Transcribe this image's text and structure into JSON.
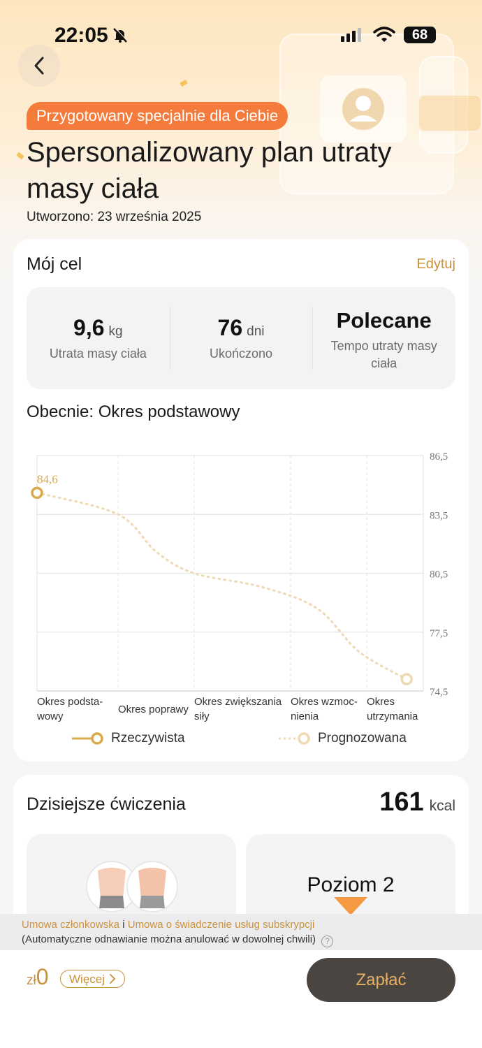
{
  "status_bar": {
    "time": "22:05",
    "battery": "68"
  },
  "hero": {
    "badge": "Przygotowany specjalnie dla Ciebie",
    "title": "Spersonalizowany plan utraty masy ciała",
    "created": "Utworzono: 23 września 2025"
  },
  "goal": {
    "title": "Mój cel",
    "edit_label": "Edytuj",
    "stats": [
      {
        "value": "9,6",
        "unit": "kg",
        "label": "Utrata masy ciała"
      },
      {
        "value": "76",
        "unit": "dni",
        "label": "Ukończono"
      },
      {
        "value": "Polecane",
        "unit": "",
        "label": "Tempo utraty masy ciała"
      }
    ],
    "current_period": "Obecnie: Okres podstawowy"
  },
  "chart_data": {
    "type": "line",
    "y_ticks": [
      "86,5",
      "83,5",
      "80,5",
      "77,5",
      "74,5"
    ],
    "ylim": [
      74.5,
      86.5
    ],
    "categories": [
      [
        "Okres podsta-",
        "wowy"
      ],
      [
        "Okres poprawy"
      ],
      [
        "Okres zwiększania",
        "siły"
      ],
      [
        "Okres wzmoc-",
        "nienia"
      ],
      [
        "Okres",
        "utrzymania"
      ]
    ],
    "start_label": "84,6",
    "series": [
      {
        "name": "Rzeczywista",
        "color": "#d9a94a",
        "points": [
          [
            0,
            84.6
          ]
        ]
      },
      {
        "name": "Prognozowana",
        "color": "#efd9b2",
        "points": [
          [
            0,
            84.6
          ],
          [
            1,
            83.5
          ],
          [
            1.5,
            81.6
          ],
          [
            2,
            80.5
          ],
          [
            2.7,
            79.8
          ],
          [
            3.35,
            78.7
          ],
          [
            3.9,
            76.5
          ],
          [
            4.6,
            75.1
          ]
        ]
      }
    ],
    "legend_placement": "bottom",
    "grid": true
  },
  "exercise": {
    "title": "Dzisiejsze ćwiczenia",
    "kcal_value": "161",
    "kcal_unit": "kcal",
    "level": "Poziom 2"
  },
  "terms": {
    "link1": "Umowa członkowska",
    "conj": "i",
    "link2": "Umowa o świadczenie usług subskrypcji",
    "note": "(Automatyczne odnawianie można anulować w dowolnej chwili)"
  },
  "checkout": {
    "currency": "zł",
    "price": "0",
    "more_label": "Więcej",
    "pay_label": "Zapłać"
  }
}
